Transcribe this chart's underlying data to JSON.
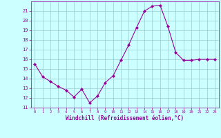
{
  "x": [
    0,
    1,
    2,
    3,
    4,
    5,
    6,
    7,
    8,
    9,
    10,
    11,
    12,
    13,
    14,
    15,
    16,
    17,
    18,
    19,
    20,
    21,
    22,
    23
  ],
  "y": [
    15.5,
    14.2,
    13.7,
    13.2,
    12.8,
    12.1,
    12.9,
    11.5,
    12.2,
    13.6,
    14.3,
    15.9,
    17.5,
    19.3,
    21.0,
    21.5,
    21.6,
    19.4,
    16.7,
    15.9,
    15.9,
    16.0,
    16.0,
    16.0
  ],
  "line_color": "#990099",
  "marker": "D",
  "marker_size": 2,
  "bg_color": "#ccffff",
  "grid_color": "#99cccc",
  "xlabel": "Windchill (Refroidissement éolien,°C)",
  "xlabel_color": "#990099",
  "tick_color": "#990099",
  "ylim": [
    11,
    22
  ],
  "xlim": [
    -0.5,
    23.5
  ],
  "yticks": [
    11,
    12,
    13,
    14,
    15,
    16,
    17,
    18,
    19,
    20,
    21
  ],
  "xticks": [
    0,
    1,
    2,
    3,
    4,
    5,
    6,
    7,
    8,
    9,
    10,
    11,
    12,
    13,
    14,
    15,
    16,
    17,
    18,
    19,
    20,
    21,
    22,
    23
  ]
}
